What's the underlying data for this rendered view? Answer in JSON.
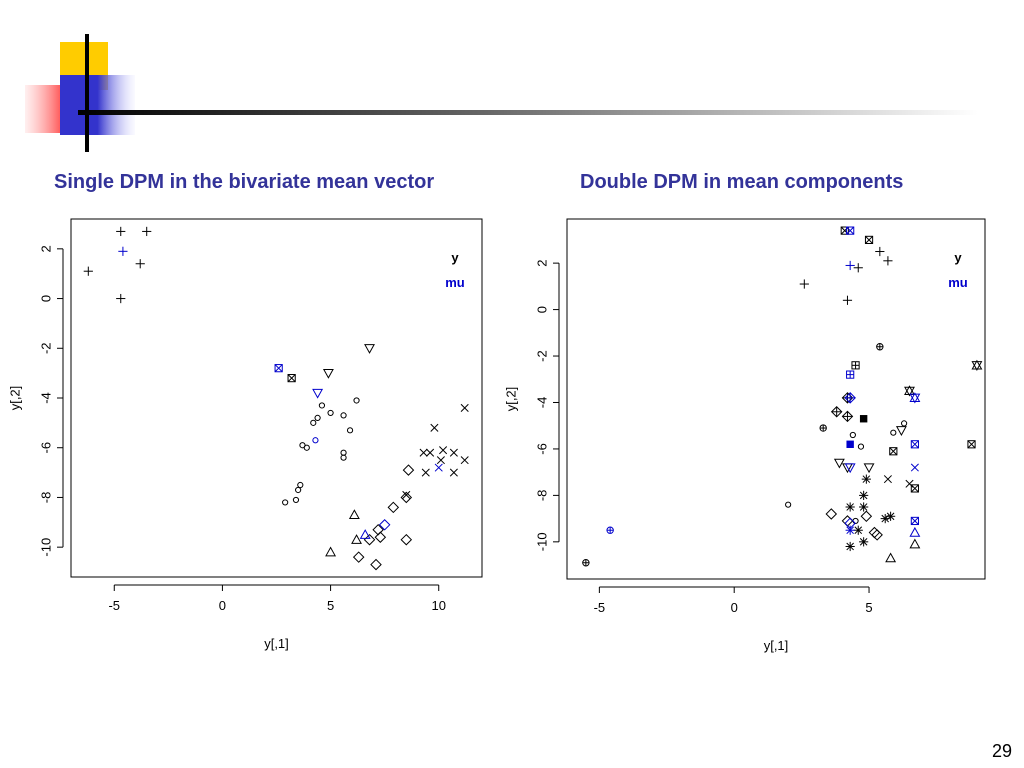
{
  "slide": {
    "left_title": "Single DPM in the bivariate mean vector",
    "right_title": "Double DPM in mean components",
    "page_number": "29",
    "accent_color": "#333399",
    "decoration_colors": [
      "#ffcc00",
      "#ff3333",
      "#3333cc",
      "#000000"
    ]
  },
  "chart_data": [
    {
      "type": "scatter",
      "title": "Single DPM in the bivariate mean vector",
      "xlabel": "y[,1]",
      "ylabel": "y[,2]",
      "xlim": [
        -7,
        12
      ],
      "ylim": [
        -11.2,
        3.2
      ],
      "xticks": [
        -5,
        0,
        5,
        10
      ],
      "yticks": [
        2,
        0,
        -2,
        -4,
        -6,
        -8,
        -10
      ],
      "legend": {
        "position": "top-right",
        "entries": [
          {
            "label": "y",
            "color": "#000000"
          },
          {
            "label": "mu",
            "color": "#0000cc"
          }
        ]
      },
      "grid": false,
      "series": [
        {
          "name": "y",
          "color": "#000000",
          "points": [
            {
              "x": -4.7,
              "y": 2.7,
              "shape": "plus"
            },
            {
              "x": -3.5,
              "y": 2.7,
              "shape": "plus"
            },
            {
              "x": -3.8,
              "y": 1.4,
              "shape": "plus"
            },
            {
              "x": -6.2,
              "y": 1.1,
              "shape": "plus"
            },
            {
              "x": -4.7,
              "y": 0.0,
              "shape": "plus"
            },
            {
              "x": 3.2,
              "y": -3.2,
              "shape": "boxx"
            },
            {
              "x": 6.8,
              "y": -2.0,
              "shape": "triangle-down"
            },
            {
              "x": 4.9,
              "y": -3.0,
              "shape": "triangle-down"
            },
            {
              "x": 6.2,
              "y": -4.1,
              "shape": "circle"
            },
            {
              "x": 4.6,
              "y": -4.3,
              "shape": "circle"
            },
            {
              "x": 5.0,
              "y": -4.6,
              "shape": "circle"
            },
            {
              "x": 5.6,
              "y": -4.7,
              "shape": "circle"
            },
            {
              "x": 4.4,
              "y": -4.8,
              "shape": "circle"
            },
            {
              "x": 4.2,
              "y": -5.0,
              "shape": "circle"
            },
            {
              "x": 5.9,
              "y": -5.3,
              "shape": "circle"
            },
            {
              "x": 3.7,
              "y": -5.9,
              "shape": "circle"
            },
            {
              "x": 3.9,
              "y": -6.0,
              "shape": "circle"
            },
            {
              "x": 5.6,
              "y": -6.2,
              "shape": "circle"
            },
            {
              "x": 5.6,
              "y": -6.4,
              "shape": "circle"
            },
            {
              "x": 3.6,
              "y": -7.5,
              "shape": "circle"
            },
            {
              "x": 3.5,
              "y": -7.7,
              "shape": "circle"
            },
            {
              "x": 3.4,
              "y": -8.1,
              "shape": "circle"
            },
            {
              "x": 2.9,
              "y": -8.2,
              "shape": "circle"
            },
            {
              "x": 11.2,
              "y": -4.4,
              "shape": "x"
            },
            {
              "x": 9.8,
              "y": -5.2,
              "shape": "x"
            },
            {
              "x": 10.2,
              "y": -6.1,
              "shape": "x"
            },
            {
              "x": 9.3,
              "y": -6.2,
              "shape": "x"
            },
            {
              "x": 9.6,
              "y": -6.2,
              "shape": "x"
            },
            {
              "x": 10.7,
              "y": -6.2,
              "shape": "x"
            },
            {
              "x": 10.1,
              "y": -6.5,
              "shape": "x"
            },
            {
              "x": 11.2,
              "y": -6.5,
              "shape": "x"
            },
            {
              "x": 9.4,
              "y": -7.0,
              "shape": "x"
            },
            {
              "x": 10.7,
              "y": -7.0,
              "shape": "x"
            },
            {
              "x": 8.5,
              "y": -7.9,
              "shape": "x"
            },
            {
              "x": 8.6,
              "y": -6.9,
              "shape": "diamond"
            },
            {
              "x": 8.5,
              "y": -8.0,
              "shape": "diamond"
            },
            {
              "x": 7.9,
              "y": -8.4,
              "shape": "diamond"
            },
            {
              "x": 7.2,
              "y": -9.3,
              "shape": "diamond"
            },
            {
              "x": 6.8,
              "y": -9.7,
              "shape": "diamond"
            },
            {
              "x": 7.3,
              "y": -9.6,
              "shape": "diamond"
            },
            {
              "x": 8.5,
              "y": -9.7,
              "shape": "diamond"
            },
            {
              "x": 6.3,
              "y": -10.4,
              "shape": "diamond"
            },
            {
              "x": 7.1,
              "y": -10.7,
              "shape": "diamond"
            },
            {
              "x": 6.1,
              "y": -8.7,
              "shape": "triangle"
            },
            {
              "x": 6.2,
              "y": -9.7,
              "shape": "triangle"
            },
            {
              "x": 5.0,
              "y": -10.2,
              "shape": "triangle"
            }
          ]
        },
        {
          "name": "mu",
          "color": "#0000cc",
          "points": [
            {
              "x": -4.6,
              "y": 1.9,
              "shape": "plus"
            },
            {
              "x": 2.6,
              "y": -2.8,
              "shape": "boxx"
            },
            {
              "x": 4.4,
              "y": -3.8,
              "shape": "triangle-down"
            },
            {
              "x": 4.3,
              "y": -5.7,
              "shape": "circle"
            },
            {
              "x": 10.0,
              "y": -6.8,
              "shape": "x"
            },
            {
              "x": 7.5,
              "y": -9.1,
              "shape": "diamond"
            },
            {
              "x": 6.6,
              "y": -9.5,
              "shape": "triangle"
            }
          ]
        }
      ]
    },
    {
      "type": "scatter",
      "title": "Double DPM in mean components",
      "xlabel": "y[,1]",
      "ylabel": "y[,2]",
      "xlim": [
        -6.2,
        9.3
      ],
      "ylim": [
        -11.6,
        3.9
      ],
      "xticks": [
        -5,
        0,
        5
      ],
      "yticks": [
        2,
        0,
        -2,
        -4,
        -6,
        -8,
        -10
      ],
      "legend": {
        "position": "top-right",
        "entries": [
          {
            "label": "y",
            "color": "#000000"
          },
          {
            "label": "mu",
            "color": "#0000cc"
          }
        ]
      },
      "grid": false,
      "series": [
        {
          "name": "y",
          "color": "#000000",
          "points": [
            {
              "x": -5.5,
              "y": -10.9,
              "shape": "circleplus"
            },
            {
              "x": 2.6,
              "y": 1.1,
              "shape": "plus"
            },
            {
              "x": 4.2,
              "y": 0.4,
              "shape": "plus"
            },
            {
              "x": 4.6,
              "y": 1.8,
              "shape": "plus"
            },
            {
              "x": 5.4,
              "y": 2.5,
              "shape": "plus"
            },
            {
              "x": 5.7,
              "y": 2.1,
              "shape": "plus"
            },
            {
              "x": 4.1,
              "y": 3.4,
              "shape": "boxx"
            },
            {
              "x": 5.0,
              "y": 3.0,
              "shape": "boxx"
            },
            {
              "x": 4.5,
              "y": -2.4,
              "shape": "boxplus"
            },
            {
              "x": 5.4,
              "y": -1.6,
              "shape": "circleplus"
            },
            {
              "x": 3.3,
              "y": -5.1,
              "shape": "circleplus"
            },
            {
              "x": 4.2,
              "y": -3.8,
              "shape": "diamondplus"
            },
            {
              "x": 3.8,
              "y": -4.4,
              "shape": "diamondplus"
            },
            {
              "x": 4.2,
              "y": -4.6,
              "shape": "diamondplus"
            },
            {
              "x": 9.0,
              "y": -2.4,
              "shape": "star"
            },
            {
              "x": 6.5,
              "y": -3.5,
              "shape": "star"
            },
            {
              "x": 4.8,
              "y": -4.7,
              "shape": "filled-square"
            },
            {
              "x": 4.4,
              "y": -5.4,
              "shape": "circle"
            },
            {
              "x": 4.7,
              "y": -5.9,
              "shape": "circle"
            },
            {
              "x": 5.9,
              "y": -5.3,
              "shape": "circle"
            },
            {
              "x": 6.3,
              "y": -4.9,
              "shape": "circle"
            },
            {
              "x": 2.0,
              "y": -8.4,
              "shape": "circle"
            },
            {
              "x": 4.5,
              "y": -9.1,
              "shape": "circle"
            },
            {
              "x": 5.9,
              "y": -6.1,
              "shape": "boxx"
            },
            {
              "x": 8.8,
              "y": -5.8,
              "shape": "boxx"
            },
            {
              "x": 6.7,
              "y": -7.7,
              "shape": "boxx"
            },
            {
              "x": 6.2,
              "y": -5.2,
              "shape": "triangle-down"
            },
            {
              "x": 4.2,
              "y": -6.8,
              "shape": "triangle-down"
            },
            {
              "x": 5.0,
              "y": -6.8,
              "shape": "triangle-down"
            },
            {
              "x": 3.9,
              "y": -6.6,
              "shape": "triangle-down"
            },
            {
              "x": 5.7,
              "y": -7.3,
              "shape": "x"
            },
            {
              "x": 6.5,
              "y": -7.5,
              "shape": "x"
            },
            {
              "x": 4.9,
              "y": -7.3,
              "shape": "asterisk"
            },
            {
              "x": 4.8,
              "y": -8.0,
              "shape": "asterisk"
            },
            {
              "x": 4.3,
              "y": -8.5,
              "shape": "asterisk"
            },
            {
              "x": 4.8,
              "y": -8.5,
              "shape": "asterisk"
            },
            {
              "x": 5.6,
              "y": -9.0,
              "shape": "asterisk"
            },
            {
              "x": 5.8,
              "y": -8.9,
              "shape": "asterisk"
            },
            {
              "x": 4.6,
              "y": -9.5,
              "shape": "asterisk"
            },
            {
              "x": 4.8,
              "y": -10.0,
              "shape": "asterisk"
            },
            {
              "x": 4.3,
              "y": -10.2,
              "shape": "asterisk"
            },
            {
              "x": 3.6,
              "y": -8.8,
              "shape": "diamond"
            },
            {
              "x": 4.9,
              "y": -8.9,
              "shape": "diamond"
            },
            {
              "x": 4.2,
              "y": -9.1,
              "shape": "diamond"
            },
            {
              "x": 5.3,
              "y": -9.7,
              "shape": "diamond"
            },
            {
              "x": 5.2,
              "y": -9.6,
              "shape": "diamond"
            },
            {
              "x": 6.7,
              "y": -10.1,
              "shape": "triangle"
            },
            {
              "x": 5.8,
              "y": -10.7,
              "shape": "triangle"
            }
          ]
        },
        {
          "name": "mu",
          "color": "#0000cc",
          "points": [
            {
              "x": -4.6,
              "y": -9.5,
              "shape": "circleplus"
            },
            {
              "x": 4.3,
              "y": 3.4,
              "shape": "boxx"
            },
            {
              "x": 4.3,
              "y": 1.9,
              "shape": "plus"
            },
            {
              "x": 4.3,
              "y": -2.8,
              "shape": "boxplus"
            },
            {
              "x": 4.3,
              "y": -3.8,
              "shape": "diamondplus"
            },
            {
              "x": 6.7,
              "y": -3.8,
              "shape": "star"
            },
            {
              "x": 4.3,
              "y": -5.8,
              "shape": "filled-square"
            },
            {
              "x": 6.7,
              "y": -5.8,
              "shape": "boxx"
            },
            {
              "x": 6.7,
              "y": -6.8,
              "shape": "x"
            },
            {
              "x": 4.3,
              "y": -6.8,
              "shape": "triangle-down"
            },
            {
              "x": 6.7,
              "y": -9.1,
              "shape": "boxx"
            },
            {
              "x": 4.3,
              "y": -9.5,
              "shape": "asterisk"
            },
            {
              "x": 4.3,
              "y": -9.2,
              "shape": "diamond"
            },
            {
              "x": 6.7,
              "y": -9.6,
              "shape": "triangle"
            }
          ]
        }
      ]
    }
  ]
}
